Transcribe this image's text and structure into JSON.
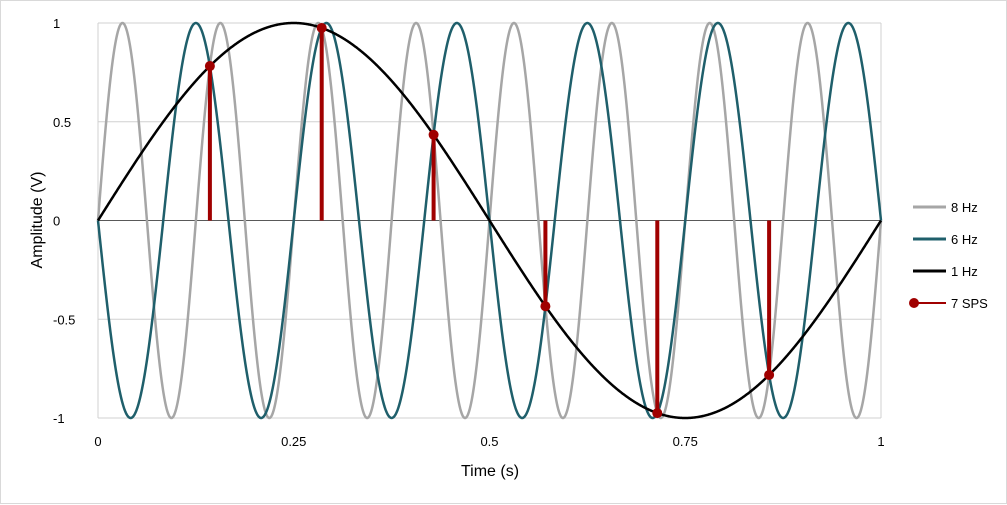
{
  "chart_data": {
    "type": "line",
    "title": "",
    "xlabel": "Time (s)",
    "ylabel": "Amplitude (V)",
    "xlim": [
      0,
      1
    ],
    "ylim": [
      -1,
      1
    ],
    "xticks": [
      "0",
      "0.25",
      "0.5",
      "0.75",
      "1"
    ],
    "yticks": [
      "1",
      "0.5",
      "0",
      "-0.5",
      "-1"
    ],
    "grid": "horizontal",
    "legend_position": "right",
    "series": [
      {
        "name": "8 Hz",
        "kind": "sine",
        "frequency_hz": 8,
        "amplitude": 1,
        "color": "#a6a6a6"
      },
      {
        "name": "6 Hz",
        "kind": "sine",
        "frequency_hz": 6,
        "amplitude": -1,
        "color": "#1f5f6b"
      },
      {
        "name": "1 Hz",
        "kind": "sine",
        "frequency_hz": 1,
        "amplitude": 1,
        "color": "#000000"
      },
      {
        "name": "7 SPS",
        "kind": "samples",
        "color": "#a00000",
        "x": [
          0.1429,
          0.2857,
          0.4286,
          0.5714,
          0.7143,
          0.8571
        ],
        "y": [
          0.782,
          0.975,
          0.434,
          -0.434,
          -0.975,
          -0.782
        ]
      }
    ]
  }
}
